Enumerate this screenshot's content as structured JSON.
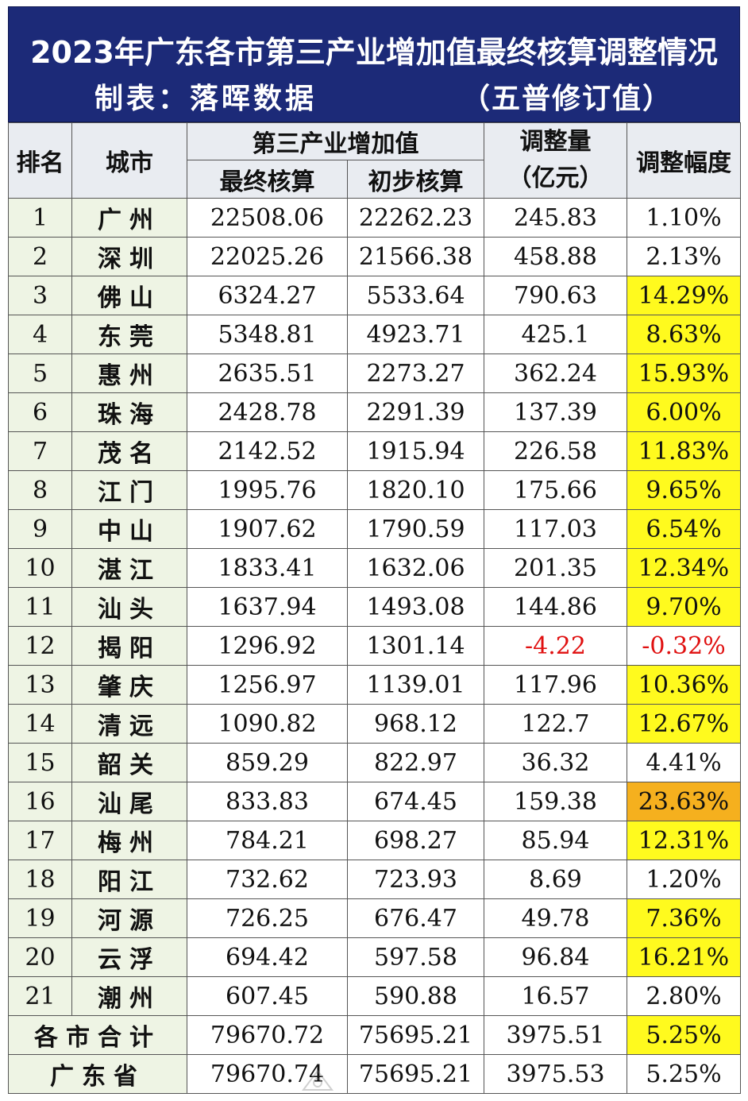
{
  "title": "2023年广东各市第三产业增加值最终核算调整情况",
  "maker": "制表：落晖数据",
  "note": "（五普修订值）",
  "headers": {
    "rank": "排名",
    "city": "城市",
    "group": "第三产业增加值",
    "final": "最终核算",
    "prelim": "初步核算",
    "adjust_line1": "调整量",
    "adjust_line2": "（亿元）",
    "pct": "调整幅度"
  },
  "rows": [
    {
      "rank": "1",
      "city": "广州",
      "final": "22508.06",
      "prelim": "22262.23",
      "adjust": "245.83",
      "pct": "1.10%",
      "hl": ""
    },
    {
      "rank": "2",
      "city": "深圳",
      "final": "22025.26",
      "prelim": "21566.38",
      "adjust": "458.88",
      "pct": "2.13%",
      "hl": ""
    },
    {
      "rank": "3",
      "city": "佛山",
      "final": "6324.27",
      "prelim": "5533.64",
      "adjust": "790.63",
      "pct": "14.29%",
      "hl": "yellow"
    },
    {
      "rank": "4",
      "city": "东莞",
      "final": "5348.81",
      "prelim": "4923.71",
      "adjust": "425.1",
      "pct": "8.63%",
      "hl": "yellow"
    },
    {
      "rank": "5",
      "city": "惠州",
      "final": "2635.51",
      "prelim": "2273.27",
      "adjust": "362.24",
      "pct": "15.93%",
      "hl": "yellow"
    },
    {
      "rank": "6",
      "city": "珠海",
      "final": "2428.78",
      "prelim": "2291.39",
      "adjust": "137.39",
      "pct": "6.00%",
      "hl": "yellow"
    },
    {
      "rank": "7",
      "city": "茂名",
      "final": "2142.52",
      "prelim": "1915.94",
      "adjust": "226.58",
      "pct": "11.83%",
      "hl": "yellow"
    },
    {
      "rank": "8",
      "city": "江门",
      "final": "1995.76",
      "prelim": "1820.10",
      "adjust": "175.66",
      "pct": "9.65%",
      "hl": "yellow"
    },
    {
      "rank": "9",
      "city": "中山",
      "final": "1907.62",
      "prelim": "1790.59",
      "adjust": "117.03",
      "pct": "6.54%",
      "hl": "yellow"
    },
    {
      "rank": "10",
      "city": "湛江",
      "final": "1833.41",
      "prelim": "1632.06",
      "adjust": "201.35",
      "pct": "12.34%",
      "hl": "yellow"
    },
    {
      "rank": "11",
      "city": "汕头",
      "final": "1637.94",
      "prelim": "1493.08",
      "adjust": "144.86",
      "pct": "9.70%",
      "hl": "yellow"
    },
    {
      "rank": "12",
      "city": "揭阳",
      "final": "1296.92",
      "prelim": "1301.14",
      "adjust": "-4.22",
      "pct": "-0.32%",
      "hl": "negative"
    },
    {
      "rank": "13",
      "city": "肇庆",
      "final": "1256.97",
      "prelim": "1139.01",
      "adjust": "117.96",
      "pct": "10.36%",
      "hl": "yellow"
    },
    {
      "rank": "14",
      "city": "清远",
      "final": "1090.82",
      "prelim": "968.12",
      "adjust": "122.7",
      "pct": "12.67%",
      "hl": "yellow"
    },
    {
      "rank": "15",
      "city": "韶关",
      "final": "859.29",
      "prelim": "822.97",
      "adjust": "36.32",
      "pct": "4.41%",
      "hl": ""
    },
    {
      "rank": "16",
      "city": "汕尾",
      "final": "833.83",
      "prelim": "674.45",
      "adjust": "159.38",
      "pct": "23.63%",
      "hl": "orange"
    },
    {
      "rank": "17",
      "city": "梅州",
      "final": "784.21",
      "prelim": "698.27",
      "adjust": "85.94",
      "pct": "12.31%",
      "hl": "yellow"
    },
    {
      "rank": "18",
      "city": "阳江",
      "final": "732.62",
      "prelim": "723.93",
      "adjust": "8.69",
      "pct": "1.20%",
      "hl": ""
    },
    {
      "rank": "19",
      "city": "河源",
      "final": "726.25",
      "prelim": "676.47",
      "adjust": "49.78",
      "pct": "7.36%",
      "hl": "yellow"
    },
    {
      "rank": "20",
      "city": "云浮",
      "final": "694.42",
      "prelim": "597.58",
      "adjust": "96.84",
      "pct": "16.21%",
      "hl": "yellow"
    },
    {
      "rank": "21",
      "city": "潮州",
      "final": "607.45",
      "prelim": "590.88",
      "adjust": "16.57",
      "pct": "2.80%",
      "hl": ""
    }
  ],
  "totals": [
    {
      "label": "各市合计",
      "final": "79670.72",
      "prelim": "75695.21",
      "adjust": "3975.51",
      "pct": "5.25%",
      "hl": "yellow"
    },
    {
      "label": "广东省",
      "final": "79670.74",
      "prelim": "75695.21",
      "adjust": "3975.53",
      "pct": "5.25%",
      "hl": ""
    }
  ],
  "colors": {
    "title_bg": "#1c2a78",
    "header_bg": "#e9ecf1",
    "label_bg": "#eef4e4",
    "highlight_yellow": "#fffa1e",
    "highlight_orange": "#f5b01e",
    "negative_text": "#e01010"
  },
  "watermark_icon": "watermark-logo-icon"
}
